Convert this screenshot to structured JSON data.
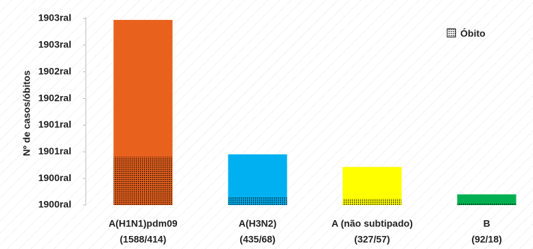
{
  "chart_data": {
    "type": "bar",
    "y_label": "Nº de casos/óbitos",
    "categories": [
      "A(H1N1)pdm09",
      "A(H3N2)",
      "A (não subtipado)",
      "B"
    ],
    "category_notes": [
      "(1588/414)",
      "(435/68)",
      "(327/57)",
      "(92/18)"
    ],
    "values": [
      1588,
      435,
      327,
      92
    ],
    "colors": [
      "#e8621e",
      "#00b0f0",
      "#ffff00",
      "#00b050"
    ],
    "series": [
      {
        "name": "Óbito",
        "values": [
          414,
          68,
          57,
          18
        ]
      }
    ],
    "ylim": [
      0,
      1600
    ],
    "yticks": [
      {
        "value": 0,
        "label": "1900ral"
      },
      {
        "value": 228.6,
        "label": "1900ral"
      },
      {
        "value": 457.1,
        "label": "1901ral"
      },
      {
        "value": 685.7,
        "label": "1901ral"
      },
      {
        "value": 914.3,
        "label": "1902ral"
      },
      {
        "value": 1142.9,
        "label": "1902ral"
      },
      {
        "value": 1371.4,
        "label": "1903ral"
      },
      {
        "value": 1600,
        "label": "1903ral"
      }
    ],
    "legend": "top-right"
  }
}
